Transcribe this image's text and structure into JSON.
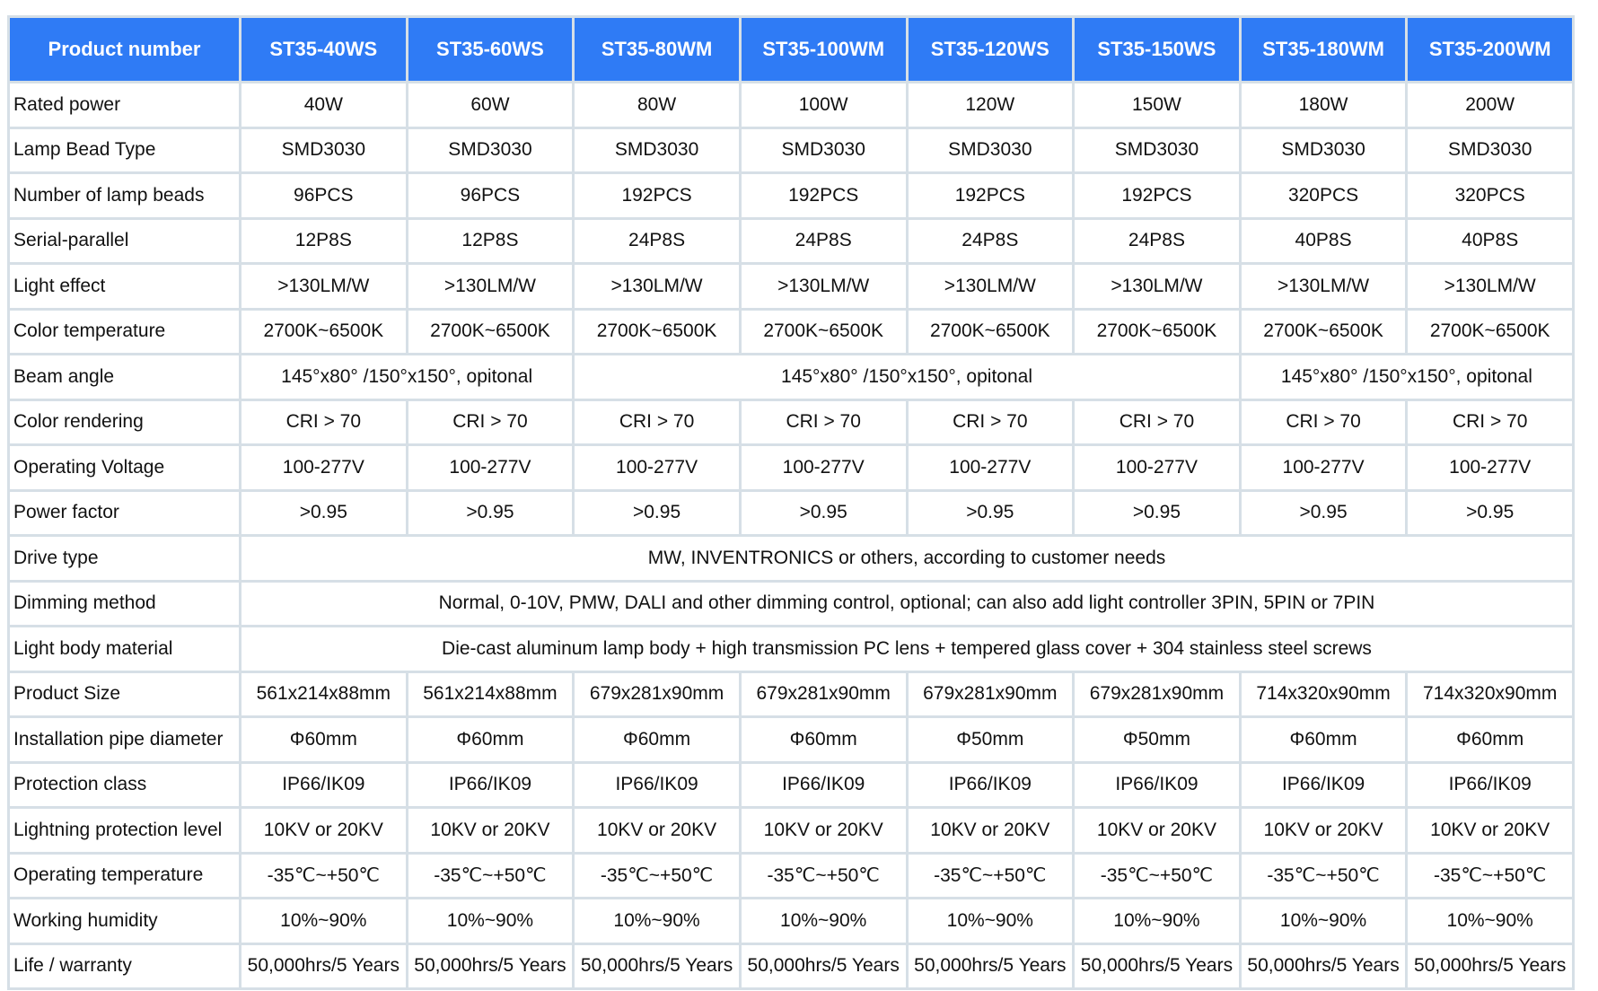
{
  "table": {
    "header": [
      "Product number",
      "ST35-40WS",
      "ST35-60WS",
      "ST35-80WM",
      "ST35-100WM",
      "ST35-120WS",
      "ST35-150WS",
      "ST35-180WM",
      "ST35-200WM"
    ],
    "header_color": "#2f7bf5",
    "rows": [
      {
        "label": "Rated power",
        "cells": [
          {
            "text": "40W"
          },
          {
            "text": "60W"
          },
          {
            "text": "80W"
          },
          {
            "text": "100W"
          },
          {
            "text": "120W"
          },
          {
            "text": "150W"
          },
          {
            "text": "180W"
          },
          {
            "text": "200W"
          }
        ]
      },
      {
        "label": "Lamp Bead Type",
        "cells": [
          {
            "text": "SMD3030"
          },
          {
            "text": "SMD3030"
          },
          {
            "text": "SMD3030"
          },
          {
            "text": "SMD3030"
          },
          {
            "text": "SMD3030"
          },
          {
            "text": "SMD3030"
          },
          {
            "text": "SMD3030"
          },
          {
            "text": "SMD3030"
          }
        ]
      },
      {
        "label": "Number of lamp beads",
        "cells": [
          {
            "text": "96PCS"
          },
          {
            "text": "96PCS"
          },
          {
            "text": "192PCS"
          },
          {
            "text": "192PCS"
          },
          {
            "text": "192PCS"
          },
          {
            "text": "192PCS"
          },
          {
            "text": "320PCS"
          },
          {
            "text": "320PCS"
          }
        ]
      },
      {
        "label": "Serial-parallel",
        "cells": [
          {
            "text": "12P8S"
          },
          {
            "text": "12P8S"
          },
          {
            "text": "24P8S"
          },
          {
            "text": "24P8S"
          },
          {
            "text": "24P8S"
          },
          {
            "text": "24P8S"
          },
          {
            "text": "40P8S"
          },
          {
            "text": "40P8S"
          }
        ]
      },
      {
        "label": "Light effect",
        "cells": [
          {
            "text": ">130LM/W"
          },
          {
            "text": ">130LM/W"
          },
          {
            "text": ">130LM/W"
          },
          {
            "text": ">130LM/W"
          },
          {
            "text": ">130LM/W"
          },
          {
            "text": ">130LM/W"
          },
          {
            "text": ">130LM/W"
          },
          {
            "text": ">130LM/W"
          }
        ]
      },
      {
        "label": "Color temperature",
        "cells": [
          {
            "text": "2700K~6500K"
          },
          {
            "text": "2700K~6500K"
          },
          {
            "text": "2700K~6500K"
          },
          {
            "text": "2700K~6500K"
          },
          {
            "text": "2700K~6500K"
          },
          {
            "text": "2700K~6500K"
          },
          {
            "text": "2700K~6500K"
          },
          {
            "text": "2700K~6500K"
          }
        ]
      },
      {
        "label": "Beam angle",
        "cells": [
          {
            "text": "145°x80° /150°x150°, opitonal",
            "span": 2
          },
          {
            "text": "145°x80° /150°x150°, opitonal",
            "span": 4
          },
          {
            "text": "145°x80° /150°x150°, opitonal",
            "span": 2
          }
        ]
      },
      {
        "label": "Color rendering",
        "cells": [
          {
            "text": "CRI > 70"
          },
          {
            "text": "CRI > 70"
          },
          {
            "text": "CRI > 70"
          },
          {
            "text": "CRI > 70"
          },
          {
            "text": "CRI > 70"
          },
          {
            "text": "CRI > 70"
          },
          {
            "text": "CRI > 70"
          },
          {
            "text": "CRI > 70"
          }
        ]
      },
      {
        "label": "Operating Voltage",
        "cells": [
          {
            "text": "100-277V"
          },
          {
            "text": "100-277V"
          },
          {
            "text": "100-277V"
          },
          {
            "text": "100-277V"
          },
          {
            "text": "100-277V"
          },
          {
            "text": "100-277V"
          },
          {
            "text": "100-277V"
          },
          {
            "text": "100-277V"
          }
        ]
      },
      {
        "label": "Power factor",
        "cells": [
          {
            "text": ">0.95"
          },
          {
            "text": ">0.95"
          },
          {
            "text": ">0.95"
          },
          {
            "text": ">0.95"
          },
          {
            "text": ">0.95"
          },
          {
            "text": ">0.95"
          },
          {
            "text": ">0.95"
          },
          {
            "text": ">0.95"
          }
        ]
      },
      {
        "label": "Drive type",
        "cells": [
          {
            "text": "MW, INVENTRONICS or others, according to customer needs",
            "span": 8
          }
        ]
      },
      {
        "label": "Dimming method",
        "cells": [
          {
            "text": "Normal, 0-10V, PMW, DALI and other dimming control, optional; can also add light controller 3PIN, 5PIN or 7PIN",
            "span": 8
          }
        ]
      },
      {
        "label": "Light body material",
        "cells": [
          {
            "text": "Die-cast aluminum lamp body + high transmission PC lens + tempered glass cover + 304 stainless steel screws",
            "span": 8
          }
        ]
      },
      {
        "label": "Product Size",
        "cells": [
          {
            "text": "561x214x88mm"
          },
          {
            "text": "561x214x88mm"
          },
          {
            "text": "679x281x90mm"
          },
          {
            "text": "679x281x90mm"
          },
          {
            "text": "679x281x90mm"
          },
          {
            "text": "679x281x90mm"
          },
          {
            "text": "714x320x90mm"
          },
          {
            "text": "714x320x90mm"
          }
        ]
      },
      {
        "label": "Installation pipe diameter",
        "cells": [
          {
            "text": "Φ60mm"
          },
          {
            "text": "Φ60mm"
          },
          {
            "text": "Φ60mm"
          },
          {
            "text": "Φ60mm"
          },
          {
            "text": "Φ50mm"
          },
          {
            "text": "Φ50mm"
          },
          {
            "text": "Φ60mm"
          },
          {
            "text": "Φ60mm"
          }
        ]
      },
      {
        "label": "Protection class",
        "cells": [
          {
            "text": "IP66/IK09"
          },
          {
            "text": "IP66/IK09"
          },
          {
            "text": "IP66/IK09"
          },
          {
            "text": "IP66/IK09"
          },
          {
            "text": "IP66/IK09"
          },
          {
            "text": "IP66/IK09"
          },
          {
            "text": "IP66/IK09"
          },
          {
            "text": "IP66/IK09"
          }
        ]
      },
      {
        "label": "Lightning protection level",
        "cells": [
          {
            "text": "10KV or 20KV"
          },
          {
            "text": "10KV or 20KV"
          },
          {
            "text": "10KV or 20KV"
          },
          {
            "text": "10KV or 20KV"
          },
          {
            "text": "10KV or 20KV"
          },
          {
            "text": "10KV or 20KV"
          },
          {
            "text": "10KV or 20KV"
          },
          {
            "text": "10KV or 20KV"
          }
        ]
      },
      {
        "label": "Operating temperature",
        "cells": [
          {
            "text": "-35℃~+50℃"
          },
          {
            "text": "-35℃~+50℃"
          },
          {
            "text": "-35℃~+50℃"
          },
          {
            "text": "-35℃~+50℃"
          },
          {
            "text": "-35℃~+50℃"
          },
          {
            "text": "-35℃~+50℃"
          },
          {
            "text": "-35℃~+50℃"
          },
          {
            "text": "-35℃~+50℃"
          }
        ]
      },
      {
        "label": "Working humidity",
        "cells": [
          {
            "text": "10%~90%"
          },
          {
            "text": "10%~90%"
          },
          {
            "text": "10%~90%"
          },
          {
            "text": "10%~90%"
          },
          {
            "text": "10%~90%"
          },
          {
            "text": "10%~90%"
          },
          {
            "text": "10%~90%"
          },
          {
            "text": "10%~90%"
          }
        ]
      },
      {
        "label": "Life / warranty",
        "cells": [
          {
            "text": "50,000hrs/5 Years"
          },
          {
            "text": "50,000hrs/5 Years"
          },
          {
            "text": "50,000hrs/5 Years"
          },
          {
            "text": "50,000hrs/5 Years"
          },
          {
            "text": "50,000hrs/5 Years"
          },
          {
            "text": "50,000hrs/5 Years"
          },
          {
            "text": "50,000hrs/5 Years"
          },
          {
            "text": "50,000hrs/5 Years"
          }
        ]
      }
    ]
  }
}
